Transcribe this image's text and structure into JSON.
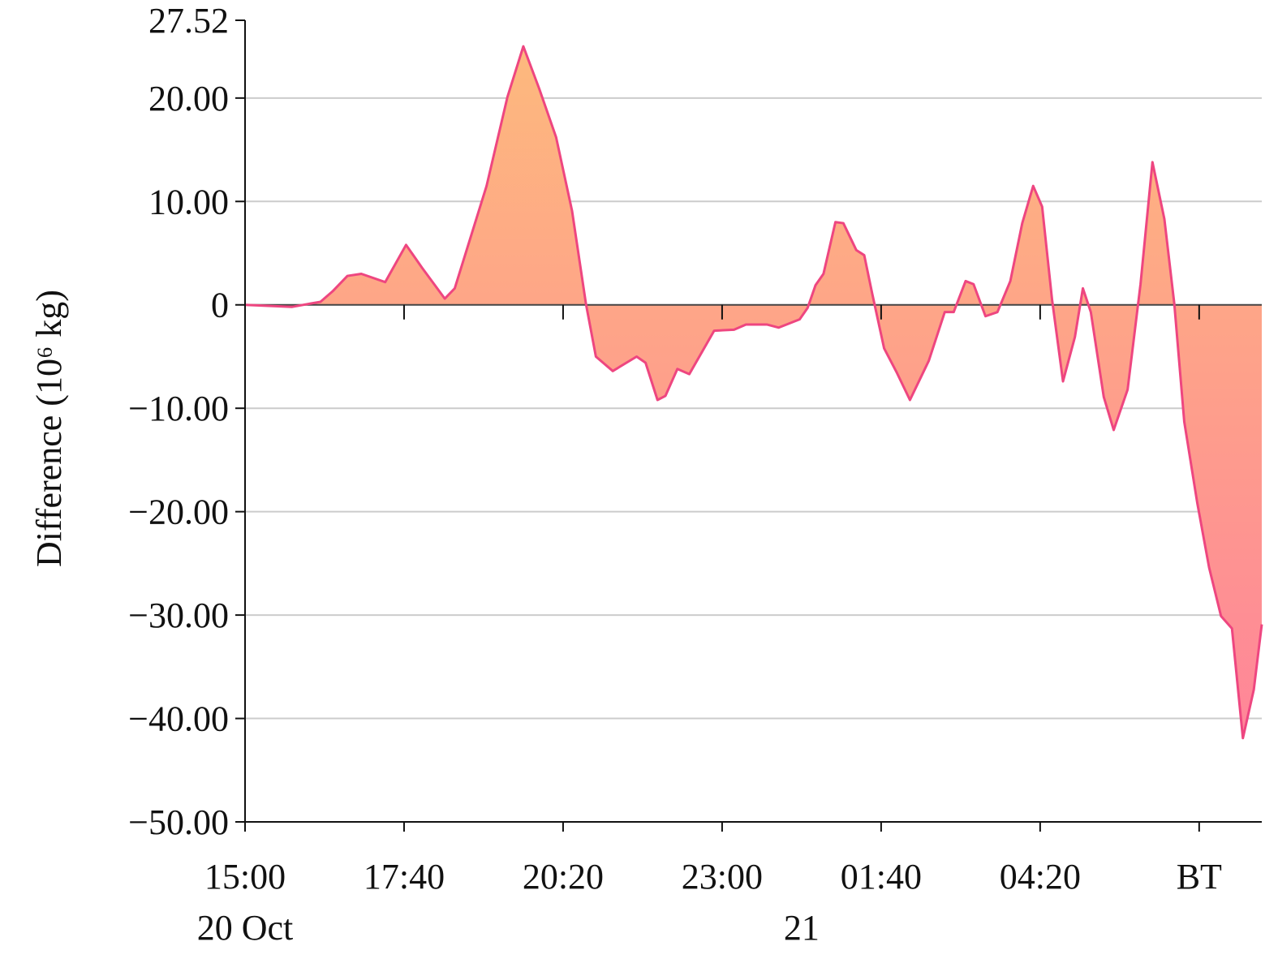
{
  "chart_data": {
    "type": "area",
    "y_label": "Difference (10⁶ kg)",
    "x": [
      0,
      47,
      76,
      88,
      103,
      117,
      141,
      162,
      178,
      201,
      211,
      243,
      264,
      280,
      296,
      313,
      329,
      343,
      353,
      370,
      394,
      403,
      415,
      423,
      435,
      447,
      472,
      492,
      504,
      525,
      537,
      558,
      566,
      574,
      582,
      594,
      602,
      615,
      623,
      631,
      643,
      656,
      669,
      688,
      704,
      713,
      725,
      733,
      745,
      757,
      770,
      782,
      793,
      802,
      812,
      823,
      835,
      843,
      851,
      864,
      874,
      888,
      901,
      913,
      925,
      935,
      945,
      958,
      970,
      982,
      993,
      1004,
      1015,
      1023
    ],
    "series": [
      {
        "name": "Difference",
        "color": "#ee4680",
        "values": [
          0,
          -0.2,
          0.3,
          1.3,
          2.8,
          3.0,
          2.2,
          5.8,
          3.6,
          0.6,
          1.6,
          11.5,
          20.1,
          25.0,
          20.9,
          16.2,
          9.1,
          0.1,
          -5.0,
          -6.4,
          -5.0,
          -5.6,
          -9.2,
          -8.8,
          -6.2,
          -6.7,
          -2.5,
          -2.4,
          -1.9,
          -1.9,
          -2.2,
          -1.4,
          -0.3,
          1.9,
          3.0,
          8.0,
          7.9,
          5.3,
          4.8,
          1.1,
          -4.2,
          -6.6,
          -9.2,
          -5.4,
          -0.7,
          -0.7,
          2.3,
          2.0,
          -1.1,
          -0.7,
          2.3,
          7.9,
          11.5,
          9.5,
          0.5,
          -7.4,
          -3.1,
          1.6,
          -0.7,
          -8.9,
          -12.1,
          -8.2,
          2.0,
          13.8,
          8.3,
          0.1,
          -11.3,
          -19.1,
          -25.4,
          -30.1,
          -31.3,
          -41.9,
          -37.2,
          -30.9
        ]
      }
    ],
    "fill_colors": [
      "#fdbb7c",
      "#ff7f9c"
    ],
    "xlim": [
      0,
      1023
    ],
    "xticks": [
      {
        "value": 0,
        "label": "15:00"
      },
      {
        "value": 160,
        "label": "17:40"
      },
      {
        "value": 320,
        "label": "20:20"
      },
      {
        "value": 480,
        "label": "23:00"
      },
      {
        "value": 640,
        "label": "01:40"
      },
      {
        "value": 800,
        "label": "04:20"
      },
      {
        "value": 960,
        "label": "BT"
      }
    ],
    "x_date_labels": [
      {
        "value": 0,
        "label": "20 Oct"
      },
      {
        "value": 560,
        "label": "21"
      }
    ],
    "ylim": [
      -50,
      27.52
    ],
    "yticks": [
      {
        "value": -50,
        "label": "−50.00"
      },
      {
        "value": -40,
        "label": "−40.00"
      },
      {
        "value": -30,
        "label": "−30.00"
      },
      {
        "value": -20,
        "label": "−20.00"
      },
      {
        "value": -10,
        "label": "−10.00"
      },
      0,
      {
        "value": 10,
        "label": "10.00"
      },
      {
        "value": 20,
        "label": "20.00"
      },
      {
        "value": 27.52,
        "label": "27.52"
      }
    ],
    "grid": true
  }
}
